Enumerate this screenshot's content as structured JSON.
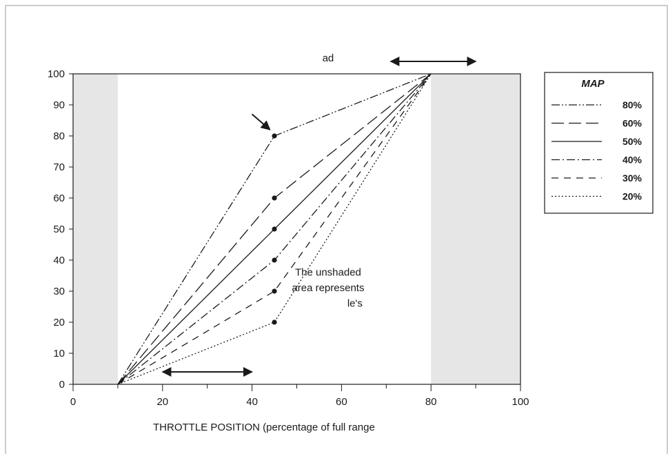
{
  "chart_data": {
    "type": "line",
    "xlabel": "THROTTLE POSITION  (percentage of full range",
    "ylabel": "",
    "xlim": [
      0,
      100
    ],
    "ylim": [
      0,
      100
    ],
    "x_ticks": [
      0,
      20,
      40,
      60,
      80,
      100
    ],
    "y_ticks": [
      0,
      10,
      20,
      30,
      40,
      50,
      60,
      70,
      80,
      90,
      100
    ],
    "shaded_x_ranges": [
      [
        0,
        10
      ],
      [
        80,
        100
      ]
    ],
    "shade_color": "#e6e6e6",
    "legend": {
      "title": "MAP",
      "placement": "right"
    },
    "series": [
      {
        "name": "80%",
        "style": "dash-dot-dot",
        "x": [
          10,
          45,
          80
        ],
        "y": [
          0,
          80,
          100
        ]
      },
      {
        "name": "60%",
        "style": "long-dash",
        "x": [
          10,
          45,
          80
        ],
        "y": [
          0,
          60,
          100
        ]
      },
      {
        "name": "50%",
        "style": "solid",
        "x": [
          10,
          45,
          80
        ],
        "y": [
          0,
          50,
          100
        ]
      },
      {
        "name": "40%",
        "style": "dash-dot",
        "x": [
          10,
          45,
          80
        ],
        "y": [
          0,
          40,
          100
        ]
      },
      {
        "name": "30%",
        "style": "dash",
        "x": [
          10,
          45,
          80
        ],
        "y": [
          0,
          30,
          100
        ]
      },
      {
        "name": "20%",
        "style": "dotted",
        "x": [
          10,
          45,
          80
        ],
        "y": [
          0,
          20,
          100
        ]
      }
    ],
    "annotations": [
      {
        "text": "ad",
        "x": 57,
        "y": 104
      },
      {
        "text": "The unshaded",
        "x": 57,
        "y": 35
      },
      {
        "text": "area represents",
        "x": 57,
        "y": 30
      },
      {
        "text": "le's",
        "x": 63,
        "y": 25
      }
    ],
    "double_arrows": [
      {
        "x": [
          71,
          90
        ],
        "y": 104
      },
      {
        "x": [
          20,
          40
        ],
        "y": 4
      }
    ],
    "pointer_arrow": {
      "from": [
        40,
        87
      ],
      "to": [
        44,
        82
      ]
    }
  }
}
